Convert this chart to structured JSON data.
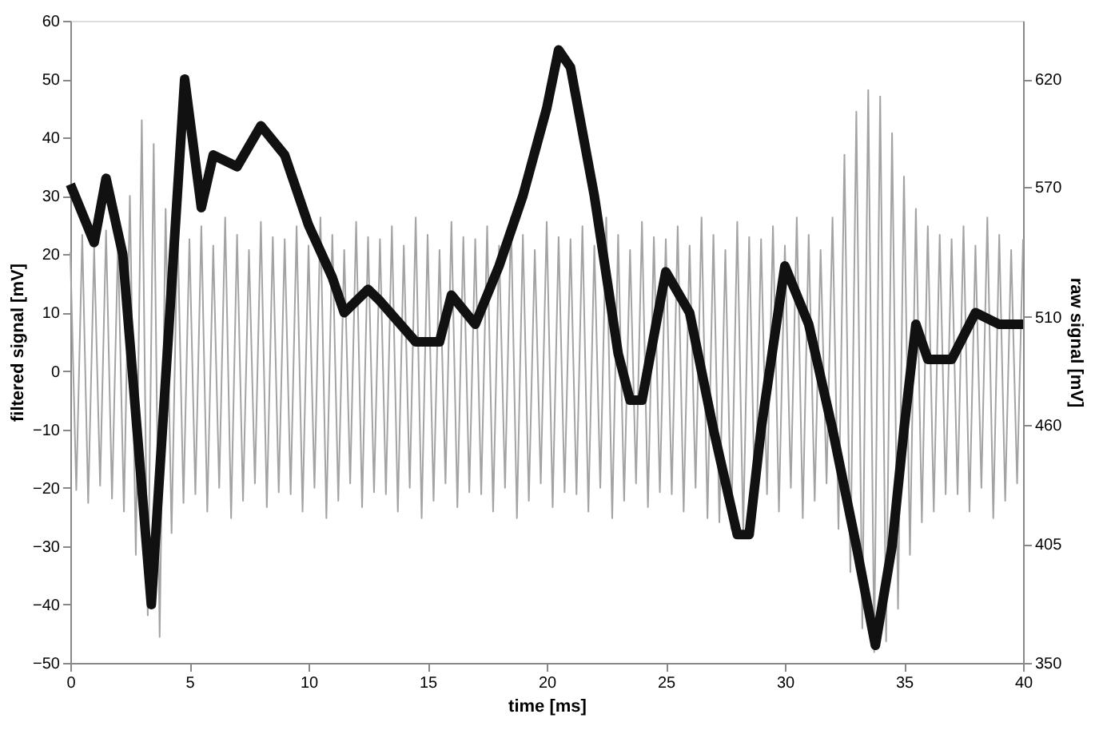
{
  "chart_data": {
    "type": "line",
    "xlabel": "time [ms]",
    "ylabel": "filtered signal [mV]",
    "y2label": "raw signal [mV]",
    "xlim": [
      0,
      40
    ],
    "xticks": [
      0,
      5,
      10,
      15,
      20,
      25,
      30,
      35,
      40
    ],
    "ylim": [
      -50,
      60
    ],
    "yticks": [
      -50,
      -40,
      -30,
      -20,
      -10,
      0,
      10,
      20,
      30,
      40,
      50,
      60
    ],
    "y2lim": [
      350,
      647
    ],
    "y2ticks": [
      350,
      405,
      460,
      510,
      570,
      620
    ],
    "grid": false,
    "marker": "none",
    "line_style": "solid",
    "series": [
      {
        "color": "#a3a3a3",
        "axis": "y2",
        "x": [
          0,
          0.25,
          0.5,
          0.75,
          1,
          1.25,
          1.5,
          1.75,
          2,
          2.25,
          2.5,
          2.75,
          3,
          3.25,
          3.5,
          3.75,
          4,
          4.25,
          4.5,
          4.75,
          5,
          5.25,
          5.5,
          5.75,
          6,
          6.25,
          6.5,
          6.75,
          7,
          7.25,
          7.5,
          7.75,
          8,
          8.25,
          8.5,
          8.75,
          9,
          9.25,
          9.5,
          9.75,
          10,
          10.25,
          10.5,
          10.75,
          11,
          11.25,
          11.5,
          11.75,
          12,
          12.25,
          12.5,
          12.75,
          13,
          13.25,
          13.5,
          13.75,
          14,
          14.25,
          14.5,
          14.75,
          15,
          15.25,
          15.5,
          15.75,
          16,
          16.25,
          16.5,
          16.75,
          17,
          17.25,
          17.5,
          17.75,
          18,
          18.25,
          18.5,
          18.75,
          19,
          19.25,
          19.5,
          19.75,
          20,
          20.25,
          20.5,
          20.75,
          21,
          21.25,
          21.5,
          21.75,
          22,
          22.25,
          22.5,
          22.75,
          23,
          23.25,
          23.5,
          23.75,
          24,
          24.25,
          24.5,
          24.75,
          25,
          25.25,
          25.5,
          25.75,
          26,
          26.25,
          26.5,
          26.75,
          27,
          27.25,
          27.5,
          27.75,
          28,
          28.25,
          28.5,
          28.75,
          29,
          29.25,
          29.5,
          29.75,
          30,
          30.25,
          30.5,
          30.75,
          31,
          31.25,
          31.5,
          31.75,
          32,
          32.25,
          32.5,
          32.75,
          33,
          33.25,
          33.5,
          33.75,
          34,
          34.25,
          34.5,
          34.75,
          35,
          35.25,
          35.5,
          35.75,
          36,
          36.25,
          36.5,
          36.75,
          37,
          37.25,
          37.5,
          37.75,
          38,
          38.25,
          38.5,
          38.75,
          39,
          39.25,
          39.5,
          39.75,
          40
        ],
        "values": [
          540,
          430,
          548,
          424,
          542,
          432,
          550,
          426,
          544,
          420,
          566,
          400,
          601,
          372,
          590,
          362,
          560,
          410,
          552,
          424,
          546,
          428,
          552,
          420,
          543,
          431,
          556,
          417,
          548,
          425,
          541,
          433,
          554,
          422,
          547,
          429,
          546,
          428,
          552,
          420,
          543,
          431,
          556,
          417,
          548,
          425,
          541,
          433,
          554,
          422,
          547,
          429,
          546,
          428,
          552,
          420,
          543,
          431,
          556,
          417,
          548,
          425,
          541,
          433,
          554,
          422,
          547,
          429,
          546,
          428,
          552,
          420,
          543,
          431,
          556,
          417,
          548,
          425,
          541,
          433,
          554,
          422,
          547,
          429,
          546,
          428,
          552,
          420,
          543,
          431,
          556,
          417,
          548,
          425,
          541,
          433,
          554,
          422,
          547,
          429,
          546,
          428,
          552,
          420,
          543,
          431,
          556,
          417,
          548,
          415,
          541,
          412,
          554,
          410,
          547,
          418,
          546,
          428,
          552,
          420,
          543,
          431,
          556,
          417,
          548,
          425,
          541,
          433,
          556,
          412,
          585,
          392,
          605,
          366,
          615,
          355,
          612,
          360,
          595,
          375,
          575,
          400,
          560,
          415,
          552,
          420,
          548,
          428,
          546,
          428,
          552,
          420,
          543,
          431,
          556,
          417,
          548,
          425,
          541,
          433,
          546
        ]
      },
      {
        "color": "#111111",
        "x": [
          0,
          1,
          1.5,
          2.2,
          3.4,
          4.8,
          5.5,
          6,
          7,
          8,
          9,
          10,
          11,
          11.5,
          12.5,
          13,
          14.5,
          15.5,
          16,
          17,
          18,
          19,
          20,
          20.5,
          21,
          22,
          23,
          23.5,
          24,
          25,
          26,
          27,
          28,
          28.5,
          29,
          30,
          31,
          32,
          33,
          33.8,
          34.5,
          35,
          35.5,
          36,
          37,
          38,
          39,
          40
        ],
        "values": [
          32,
          22,
          33,
          20,
          -40,
          50,
          28,
          37,
          35,
          42,
          37,
          25,
          16,
          10,
          14,
          12,
          5,
          5,
          13,
          8,
          18,
          30,
          45,
          55,
          52,
          30,
          3,
          -5,
          -5,
          17,
          10,
          -10,
          -28,
          -28,
          -10,
          18,
          8,
          -10,
          -30,
          -47,
          -30,
          -10,
          8,
          2,
          2,
          10,
          8,
          8
        ]
      }
    ]
  }
}
